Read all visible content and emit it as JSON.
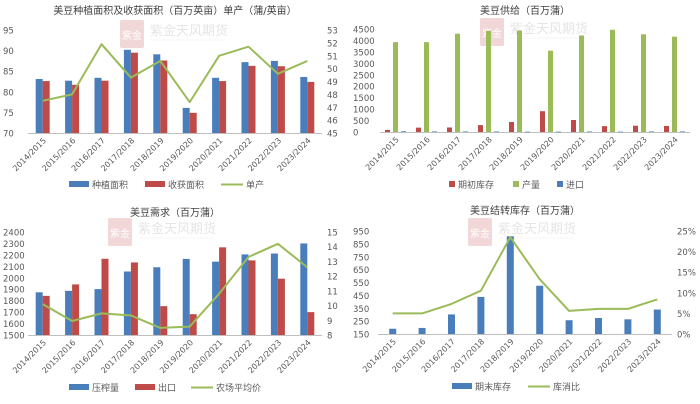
{
  "watermark": {
    "text": "紫金天风期货",
    "seal": "紫金"
  },
  "colors": {
    "blue": "#4a7ebb",
    "red": "#be4b48",
    "green": "#9bbb59",
    "axis": "#bfbfbf",
    "text": "#595959",
    "watermark": "#e6b8b7"
  },
  "chart_data": [
    {
      "id": "area_yield",
      "type": "bar+line",
      "title": "美豆种植面积及收获面积（百万英亩）单产（蒲/英亩）",
      "categories": [
        "2014/2015",
        "2015/2016",
        "2016/2017",
        "2017/2018",
        "2018/2019",
        "2019/2020",
        "2020/2021",
        "2021/2022",
        "2022/2023",
        "2023/2024"
      ],
      "series": [
        {
          "name": "种植面积",
          "type": "bar",
          "axis": "left",
          "color": "#4a7ebb",
          "values": [
            83.1,
            82.7,
            83.4,
            90.2,
            89.1,
            76.1,
            83.4,
            87.2,
            87.5,
            83.6
          ]
        },
        {
          "name": "收获面积",
          "type": "bar",
          "axis": "left",
          "color": "#be4b48",
          "values": [
            82.6,
            81.7,
            82.7,
            89.5,
            87.6,
            74.9,
            82.6,
            86.3,
            86.2,
            82.4
          ]
        },
        {
          "name": "单产",
          "type": "line",
          "axis": "right",
          "color": "#9bbb59",
          "values": [
            47.5,
            48.0,
            51.9,
            49.3,
            50.6,
            47.4,
            51.0,
            51.7,
            49.6,
            50.6
          ]
        }
      ],
      "ylim": [
        70,
        95
      ],
      "yticks": [
        70,
        75,
        80,
        85,
        90,
        95
      ],
      "y2lim": [
        45,
        53
      ],
      "y2ticks": [
        45,
        46,
        47,
        48,
        49,
        50,
        51,
        52,
        53
      ],
      "legend_position": "bottom",
      "grid": false
    },
    {
      "id": "supply",
      "type": "bar",
      "title": "美豆供给（百万蒲）",
      "categories": [
        "2014/2015",
        "2015/2016",
        "2016/2017",
        "2017/2018",
        "2018/2019",
        "2019/2020",
        "2020/2021",
        "2021/2022",
        "2022/2023",
        "2023/2024"
      ],
      "series": [
        {
          "name": "期初库存",
          "type": "bar",
          "axis": "left",
          "color": "#be4b48",
          "values": [
            92,
            191,
            197,
            302,
            438,
            909,
            525,
            257,
            274,
            264
          ]
        },
        {
          "name": "产量",
          "type": "bar",
          "axis": "left",
          "color": "#9bbb59",
          "values": [
            3927,
            3926,
            4296,
            4412,
            4428,
            3552,
            4216,
            4465,
            4270,
            4165
          ]
        },
        {
          "name": "进口",
          "type": "bar",
          "axis": "left",
          "color": "#4a7ebb",
          "values": [
            33,
            24,
            22,
            22,
            14,
            15,
            20,
            16,
            25,
            25
          ]
        }
      ],
      "ylim": [
        0,
        4500
      ],
      "yticks": [
        0,
        500,
        1000,
        1500,
        2000,
        2500,
        3000,
        3500,
        4000,
        4500
      ],
      "legend_position": "bottom",
      "grid": false
    },
    {
      "id": "demand",
      "type": "bar+line",
      "title": "美豆需求（百万蒲）",
      "categories": [
        "2014/2015",
        "2015/2016",
        "2016/2017",
        "2017/2018",
        "2018/2019",
        "2019/2020",
        "2020/2021",
        "2021/2022",
        "2022/2023",
        "2023/2024"
      ],
      "series": [
        {
          "name": "压榨量",
          "type": "bar",
          "axis": "left",
          "color": "#4a7ebb",
          "values": [
            1873,
            1886,
            1901,
            2055,
            2092,
            2165,
            2141,
            2204,
            2212,
            2300
          ]
        },
        {
          "name": "出口",
          "type": "bar",
          "axis": "left",
          "color": "#be4b48",
          "values": [
            1842,
            1942,
            2166,
            2134,
            1752,
            1682,
            2266,
            2152,
            1992,
            1700
          ]
        },
        {
          "name": "农场平均价",
          "type": "line",
          "axis": "right",
          "color": "#9bbb59",
          "values": [
            10.1,
            8.95,
            9.47,
            9.33,
            8.48,
            8.57,
            10.8,
            13.3,
            14.2,
            12.6
          ]
        }
      ],
      "ylim": [
        1500,
        2400
      ],
      "yticks": [
        1500,
        1600,
        1700,
        1800,
        1900,
        2000,
        2100,
        2200,
        2300,
        2400
      ],
      "y2lim": [
        8,
        15
      ],
      "y2ticks": [
        8,
        9,
        10,
        11,
        12,
        13,
        14,
        15
      ],
      "legend_position": "bottom",
      "grid": false
    },
    {
      "id": "carryover",
      "type": "bar+line",
      "title": "美豆结转库存（百万蒲）",
      "categories": [
        "2014/2015",
        "2015/2016",
        "2016/2017",
        "2017/2018",
        "2018/2019",
        "2019/2020",
        "2020/2021",
        "2021/2022",
        "2022/2023",
        "2023/2024"
      ],
      "series": [
        {
          "name": "期末库存",
          "type": "bar",
          "axis": "left",
          "color": "#4a7ebb",
          "values": [
            191,
            197,
            302,
            438,
            909,
            525,
            257,
            274,
            264,
            340
          ]
        },
        {
          "name": "库消比",
          "type": "line",
          "axis": "right",
          "color": "#9bbb59",
          "values": [
            5.0,
            5.0,
            7.3,
            10.5,
            23.5,
            13.3,
            5.6,
            6.1,
            6.1,
            8.4
          ],
          "unit": "%"
        }
      ],
      "ylim": [
        150,
        950
      ],
      "yticks": [
        150,
        250,
        350,
        450,
        550,
        650,
        750,
        850,
        950
      ],
      "y2lim": [
        0,
        25
      ],
      "y2ticks": [
        "0%",
        "5%",
        "10%",
        "15%",
        "20%",
        "25%"
      ],
      "legend_position": "bottom",
      "grid": false
    }
  ]
}
